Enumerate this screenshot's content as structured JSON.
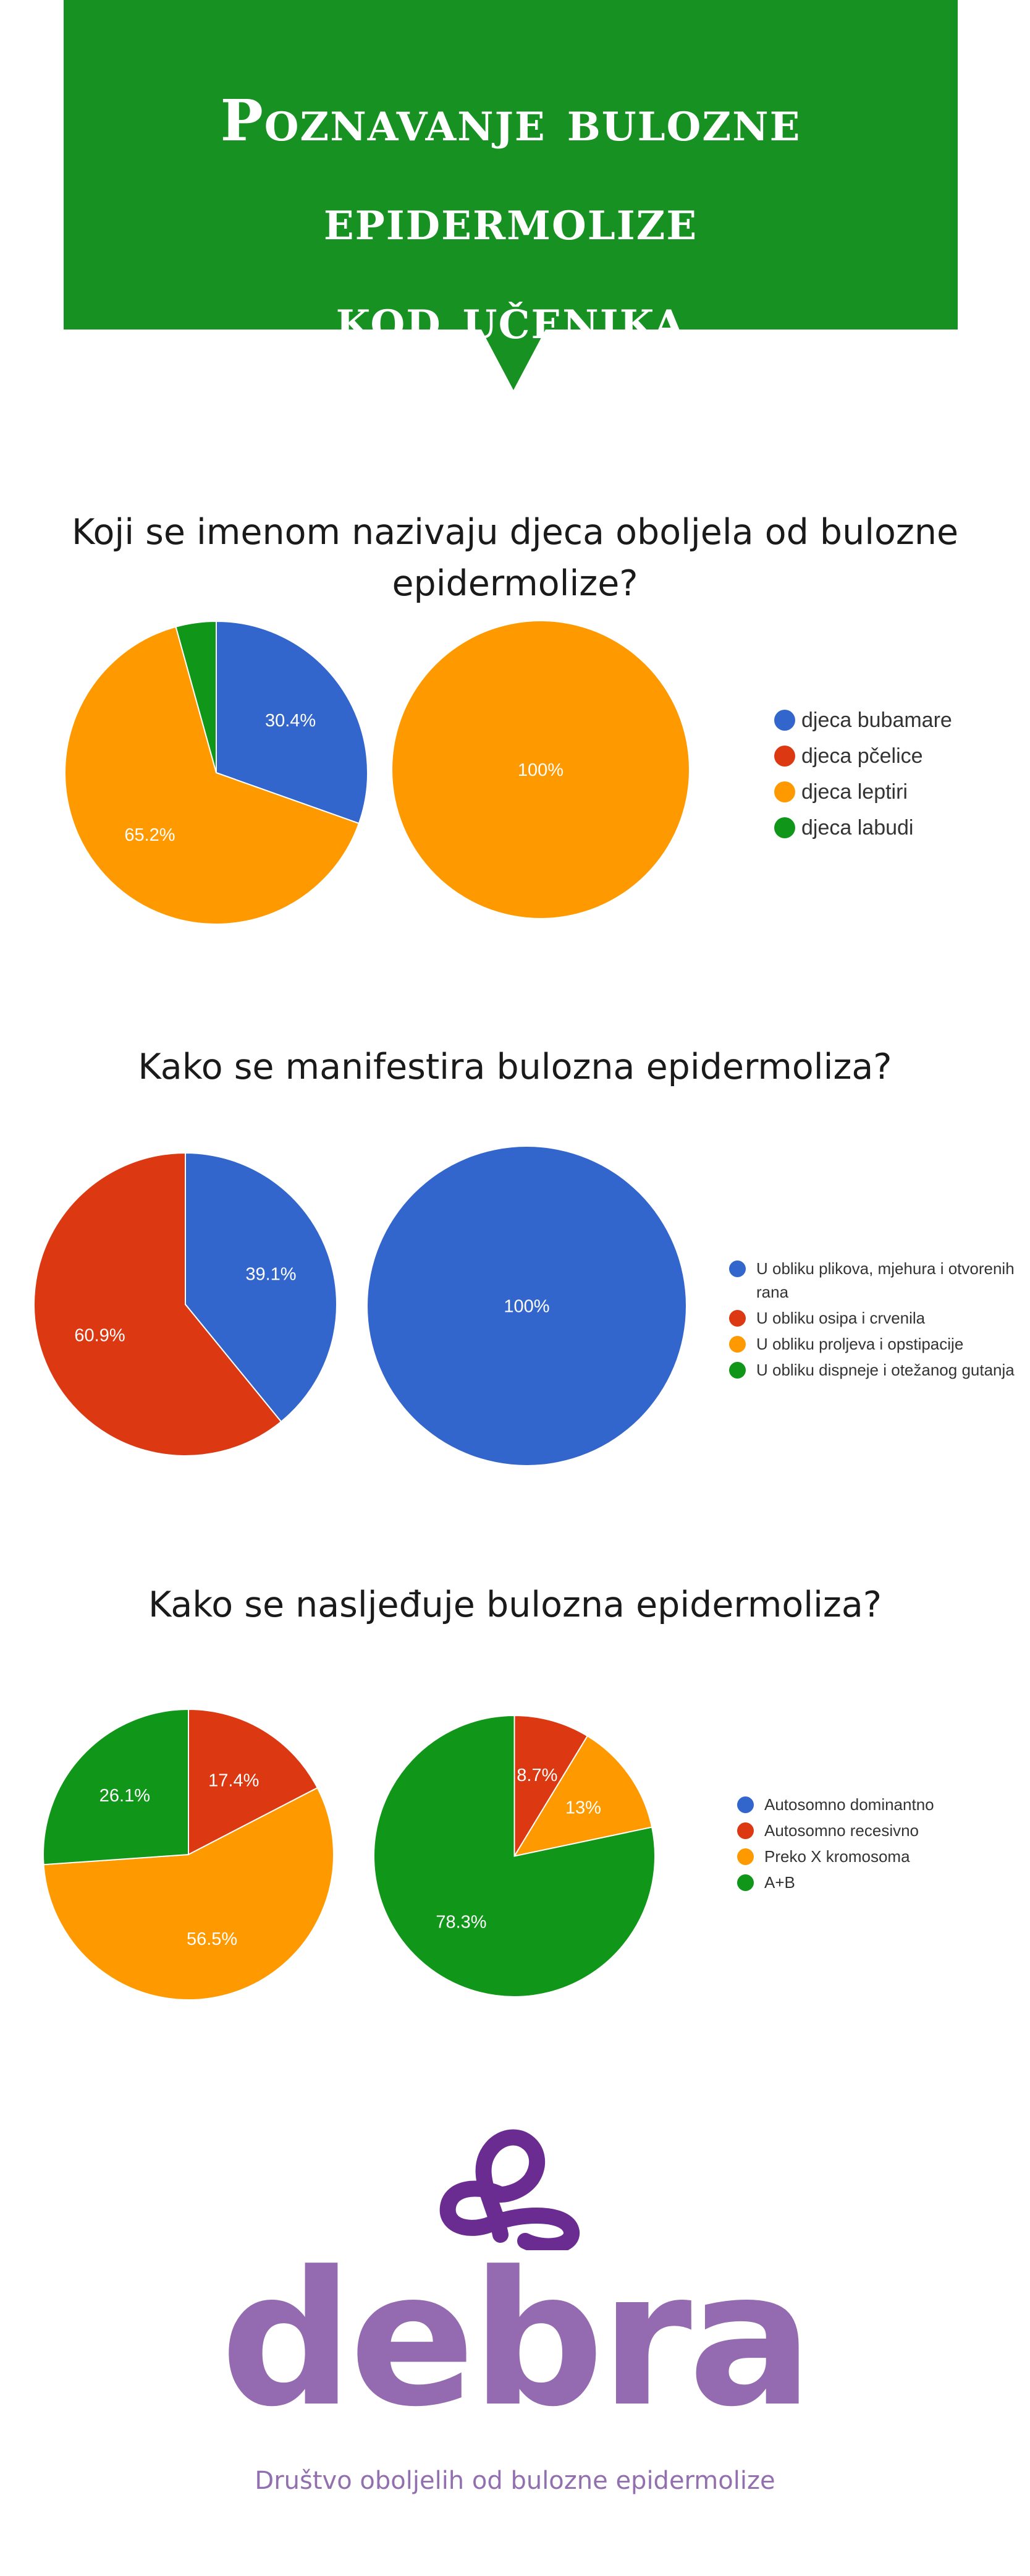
{
  "header": {
    "title_line1": "Poznavanje bulozne epidermolize",
    "title_line2": "kod učenika"
  },
  "sections": [
    {
      "question_line1": "Koji se imenom nazivaju djeca oboljela od bulozne",
      "question_line2": "epidermolize?",
      "legend": [
        "djeca bubamare",
        "djeca pčelice",
        "djeca leptiri",
        "djeca labudi"
      ]
    },
    {
      "question_line1": "Kako se manifestira bulozna epidermoliza?",
      "question_line2": "",
      "legend": [
        "U obliku plikova, mjehura i otvorenih rana",
        "U obliku osipa i crvenila",
        "U obliku proljeva i opstipacije",
        "U obliku dispneje i otežanog gutanja"
      ]
    },
    {
      "question_line1": "Kako se nasljeđuje bulozna epidermoliza?",
      "question_line2": "",
      "legend": [
        "Autosomno dominantno",
        "Autosomno recesivno",
        "Preko X kromosoma",
        "A+B"
      ]
    }
  ],
  "colors": {
    "blue": "#3366cc",
    "red": "#dc3912",
    "orange": "#ff9900",
    "green": "#109618",
    "banner": "#169122",
    "logo": "#946ab0",
    "logo_dark": "#6a2c91"
  },
  "chart_data": [
    {
      "type": "pie",
      "categories": [
        "djeca bubamare",
        "djeca pčelice",
        "djeca leptiri",
        "djeca labudi"
      ],
      "values": [
        30.4,
        0,
        65.2,
        4.3
      ],
      "labels": [
        "30.4%",
        "",
        "65.2%",
        ""
      ]
    },
    {
      "type": "pie",
      "categories": [
        "djeca bubamare",
        "djeca pčelice",
        "djeca leptiri",
        "djeca labudi"
      ],
      "values": [
        0,
        0,
        100,
        0
      ],
      "labels": [
        "",
        "",
        "100%",
        ""
      ]
    },
    {
      "type": "pie",
      "categories": [
        "U obliku plikova, mjehura i otvorenih rana",
        "U obliku osipa i crvenila",
        "U obliku proljeva i opstipacije",
        "U obliku dispneje i otežanog gutanja"
      ],
      "values": [
        39.1,
        60.9,
        0,
        0
      ],
      "labels": [
        "39.1%",
        "60.9%",
        "",
        ""
      ]
    },
    {
      "type": "pie",
      "categories": [
        "U obliku plikova, mjehura i otvorenih rana",
        "U obliku osipa i crvenila",
        "U obliku proljeva i opstipacije",
        "U obliku dispneje i otežanog gutanja"
      ],
      "values": [
        100,
        0,
        0,
        0
      ],
      "labels": [
        "100%",
        "",
        "",
        ""
      ]
    },
    {
      "type": "pie",
      "categories": [
        "Autosomno dominantno",
        "Autosomno recesivno",
        "Preko X kromosoma",
        "A+B"
      ],
      "values": [
        0,
        17.4,
        56.5,
        26.1
      ],
      "labels": [
        "",
        "17.4%",
        "56.5%",
        "26.1%"
      ]
    },
    {
      "type": "pie",
      "categories": [
        "Autosomno dominantno",
        "Autosomno recesivno",
        "Preko X kromosoma",
        "A+B"
      ],
      "values": [
        0,
        8.7,
        13,
        78.3
      ],
      "labels": [
        "",
        "8.7%",
        "13%",
        "78.3%"
      ]
    }
  ],
  "footer": {
    "logo_text": "debra",
    "tagline": "Društvo oboljelih od bulozne epidermolize"
  }
}
